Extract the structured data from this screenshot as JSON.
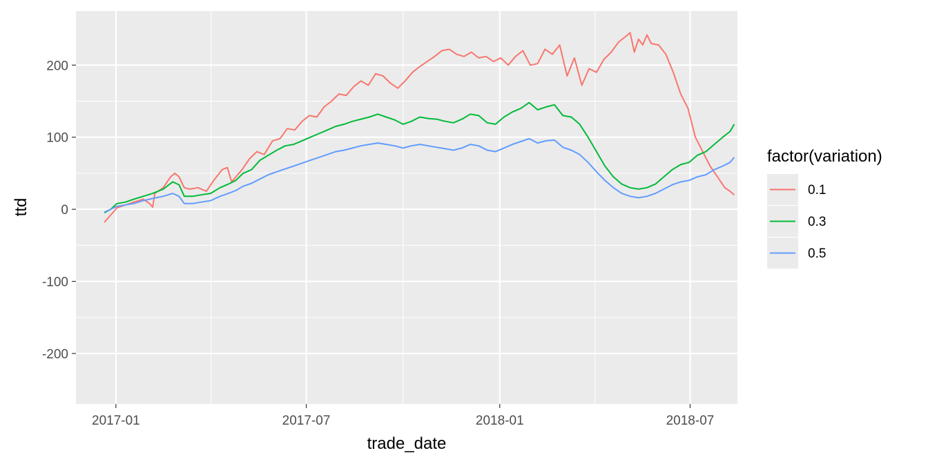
{
  "chart_data": {
    "type": "line",
    "xlabel": "trade_date",
    "ylabel": "ttd",
    "x_ticks": [
      "2017-01",
      "2017-07",
      "2018-01",
      "2018-07"
    ],
    "y_ticks": [
      -200,
      -100,
      0,
      100,
      200
    ],
    "xlim": [
      "2016-11-24",
      "2018-08-15"
    ],
    "ylim": [
      -270,
      275
    ],
    "grid": true,
    "background": "#EBEBEB",
    "legend": {
      "title": "factor(variation)",
      "position": "right",
      "entries": [
        "0.1",
        "0.3",
        "0.5"
      ]
    },
    "series": [
      {
        "name": "0.1",
        "color": "#F8766D",
        "points": [
          [
            "2016-12-21",
            -18
          ],
          [
            "2016-12-27",
            -8
          ],
          [
            "2017-01-02",
            2
          ],
          [
            "2017-01-10",
            6
          ],
          [
            "2017-01-18",
            10
          ],
          [
            "2017-01-27",
            14
          ],
          [
            "2017-02-02",
            8
          ],
          [
            "2017-02-05",
            3
          ],
          [
            "2017-02-07",
            22
          ],
          [
            "2017-02-15",
            30
          ],
          [
            "2017-02-22",
            45
          ],
          [
            "2017-02-26",
            50
          ],
          [
            "2017-03-02",
            45
          ],
          [
            "2017-03-07",
            30
          ],
          [
            "2017-03-12",
            28
          ],
          [
            "2017-03-20",
            30
          ],
          [
            "2017-03-28",
            25
          ],
          [
            "2017-04-04",
            40
          ],
          [
            "2017-04-12",
            55
          ],
          [
            "2017-04-17",
            58
          ],
          [
            "2017-04-21",
            38
          ],
          [
            "2017-05-01",
            55
          ],
          [
            "2017-05-08",
            70
          ],
          [
            "2017-05-15",
            80
          ],
          [
            "2017-05-22",
            76
          ],
          [
            "2017-05-30",
            95
          ],
          [
            "2017-06-06",
            98
          ],
          [
            "2017-06-13",
            112
          ],
          [
            "2017-06-20",
            110
          ],
          [
            "2017-06-27",
            122
          ],
          [
            "2017-07-04",
            130
          ],
          [
            "2017-07-11",
            128
          ],
          [
            "2017-07-18",
            142
          ],
          [
            "2017-07-25",
            150
          ],
          [
            "2017-08-01",
            160
          ],
          [
            "2017-08-08",
            158
          ],
          [
            "2017-08-15",
            170
          ],
          [
            "2017-08-22",
            178
          ],
          [
            "2017-08-29",
            172
          ],
          [
            "2017-09-05",
            188
          ],
          [
            "2017-09-12",
            185
          ],
          [
            "2017-09-19",
            175
          ],
          [
            "2017-09-26",
            168
          ],
          [
            "2017-10-03",
            178
          ],
          [
            "2017-10-10",
            190
          ],
          [
            "2017-10-17",
            198
          ],
          [
            "2017-10-24",
            205
          ],
          [
            "2017-10-31",
            212
          ],
          [
            "2017-11-07",
            220
          ],
          [
            "2017-11-14",
            222
          ],
          [
            "2017-11-21",
            215
          ],
          [
            "2017-11-28",
            212
          ],
          [
            "2017-12-05",
            218
          ],
          [
            "2017-12-12",
            210
          ],
          [
            "2017-12-19",
            212
          ],
          [
            "2017-12-26",
            205
          ],
          [
            "2018-01-02",
            210
          ],
          [
            "2018-01-09",
            200
          ],
          [
            "2018-01-16",
            212
          ],
          [
            "2018-01-23",
            220
          ],
          [
            "2018-01-30",
            200
          ],
          [
            "2018-02-06",
            202
          ],
          [
            "2018-02-13",
            222
          ],
          [
            "2018-02-20",
            215
          ],
          [
            "2018-02-27",
            228
          ],
          [
            "2018-03-06",
            185
          ],
          [
            "2018-03-13",
            210
          ],
          [
            "2018-03-20",
            172
          ],
          [
            "2018-03-27",
            195
          ],
          [
            "2018-04-03",
            190
          ],
          [
            "2018-04-10",
            208
          ],
          [
            "2018-04-17",
            218
          ],
          [
            "2018-04-24",
            232
          ],
          [
            "2018-05-01",
            240
          ],
          [
            "2018-05-05",
            245
          ],
          [
            "2018-05-09",
            218
          ],
          [
            "2018-05-13",
            236
          ],
          [
            "2018-05-17",
            228
          ],
          [
            "2018-05-21",
            242
          ],
          [
            "2018-05-25",
            230
          ],
          [
            "2018-06-01",
            228
          ],
          [
            "2018-06-08",
            215
          ],
          [
            "2018-06-15",
            190
          ],
          [
            "2018-06-22",
            160
          ],
          [
            "2018-06-29",
            140
          ],
          [
            "2018-07-06",
            100
          ],
          [
            "2018-07-13",
            80
          ],
          [
            "2018-07-20",
            60
          ],
          [
            "2018-07-27",
            45
          ],
          [
            "2018-08-03",
            30
          ],
          [
            "2018-08-08",
            25
          ],
          [
            "2018-08-12",
            20
          ]
        ]
      },
      {
        "name": "0.3",
        "color": "#00BA38",
        "points": [
          [
            "2016-12-21",
            -5
          ],
          [
            "2016-12-27",
            0
          ],
          [
            "2017-01-02",
            8
          ],
          [
            "2017-01-10",
            10
          ],
          [
            "2017-01-18",
            14
          ],
          [
            "2017-01-27",
            18
          ],
          [
            "2017-02-05",
            22
          ],
          [
            "2017-02-15",
            28
          ],
          [
            "2017-02-24",
            38
          ],
          [
            "2017-03-02",
            34
          ],
          [
            "2017-03-07",
            18
          ],
          [
            "2017-03-15",
            18
          ],
          [
            "2017-03-23",
            20
          ],
          [
            "2017-04-01",
            22
          ],
          [
            "2017-04-10",
            30
          ],
          [
            "2017-04-18",
            35
          ],
          [
            "2017-04-25",
            40
          ],
          [
            "2017-05-02",
            50
          ],
          [
            "2017-05-10",
            55
          ],
          [
            "2017-05-18",
            68
          ],
          [
            "2017-05-26",
            75
          ],
          [
            "2017-06-03",
            82
          ],
          [
            "2017-06-11",
            88
          ],
          [
            "2017-06-19",
            90
          ],
          [
            "2017-06-27",
            95
          ],
          [
            "2017-07-05",
            100
          ],
          [
            "2017-07-13",
            105
          ],
          [
            "2017-07-21",
            110
          ],
          [
            "2017-07-29",
            115
          ],
          [
            "2017-08-06",
            118
          ],
          [
            "2017-08-14",
            122
          ],
          [
            "2017-08-22",
            125
          ],
          [
            "2017-08-30",
            128
          ],
          [
            "2017-09-07",
            132
          ],
          [
            "2017-09-15",
            128
          ],
          [
            "2017-09-23",
            124
          ],
          [
            "2017-10-01",
            118
          ],
          [
            "2017-10-09",
            122
          ],
          [
            "2017-10-17",
            128
          ],
          [
            "2017-10-25",
            126
          ],
          [
            "2017-11-02",
            125
          ],
          [
            "2017-11-10",
            122
          ],
          [
            "2017-11-18",
            120
          ],
          [
            "2017-11-26",
            125
          ],
          [
            "2017-12-04",
            132
          ],
          [
            "2017-12-12",
            130
          ],
          [
            "2017-12-20",
            120
          ],
          [
            "2017-12-28",
            118
          ],
          [
            "2018-01-05",
            128
          ],
          [
            "2018-01-13",
            135
          ],
          [
            "2018-01-21",
            140
          ],
          [
            "2018-01-29",
            148
          ],
          [
            "2018-02-06",
            138
          ],
          [
            "2018-02-14",
            142
          ],
          [
            "2018-02-22",
            145
          ],
          [
            "2018-03-02",
            130
          ],
          [
            "2018-03-10",
            128
          ],
          [
            "2018-03-18",
            118
          ],
          [
            "2018-03-26",
            100
          ],
          [
            "2018-04-03",
            80
          ],
          [
            "2018-04-11",
            60
          ],
          [
            "2018-04-19",
            45
          ],
          [
            "2018-04-27",
            35
          ],
          [
            "2018-05-05",
            30
          ],
          [
            "2018-05-13",
            28
          ],
          [
            "2018-05-21",
            30
          ],
          [
            "2018-05-29",
            35
          ],
          [
            "2018-06-06",
            45
          ],
          [
            "2018-06-14",
            55
          ],
          [
            "2018-06-22",
            62
          ],
          [
            "2018-06-30",
            65
          ],
          [
            "2018-07-08",
            75
          ],
          [
            "2018-07-16",
            80
          ],
          [
            "2018-07-24",
            90
          ],
          [
            "2018-08-01",
            100
          ],
          [
            "2018-08-08",
            108
          ],
          [
            "2018-08-12",
            118
          ]
        ]
      },
      {
        "name": "0.5",
        "color": "#619CFF",
        "points": [
          [
            "2016-12-21",
            -4
          ],
          [
            "2016-12-27",
            0
          ],
          [
            "2017-01-02",
            4
          ],
          [
            "2017-01-10",
            6
          ],
          [
            "2017-01-18",
            8
          ],
          [
            "2017-01-27",
            12
          ],
          [
            "2017-02-05",
            15
          ],
          [
            "2017-02-15",
            18
          ],
          [
            "2017-02-24",
            22
          ],
          [
            "2017-03-02",
            18
          ],
          [
            "2017-03-07",
            8
          ],
          [
            "2017-03-15",
            8
          ],
          [
            "2017-03-23",
            10
          ],
          [
            "2017-04-01",
            12
          ],
          [
            "2017-04-10",
            18
          ],
          [
            "2017-04-18",
            22
          ],
          [
            "2017-04-25",
            26
          ],
          [
            "2017-05-02",
            32
          ],
          [
            "2017-05-10",
            36
          ],
          [
            "2017-05-18",
            42
          ],
          [
            "2017-05-26",
            48
          ],
          [
            "2017-06-03",
            52
          ],
          [
            "2017-06-11",
            56
          ],
          [
            "2017-06-19",
            60
          ],
          [
            "2017-06-27",
            64
          ],
          [
            "2017-07-05",
            68
          ],
          [
            "2017-07-13",
            72
          ],
          [
            "2017-07-21",
            76
          ],
          [
            "2017-07-29",
            80
          ],
          [
            "2017-08-06",
            82
          ],
          [
            "2017-08-14",
            85
          ],
          [
            "2017-08-22",
            88
          ],
          [
            "2017-08-30",
            90
          ],
          [
            "2017-09-07",
            92
          ],
          [
            "2017-09-15",
            90
          ],
          [
            "2017-09-23",
            88
          ],
          [
            "2017-10-01",
            85
          ],
          [
            "2017-10-09",
            88
          ],
          [
            "2017-10-17",
            90
          ],
          [
            "2017-10-25",
            88
          ],
          [
            "2017-11-02",
            86
          ],
          [
            "2017-11-10",
            84
          ],
          [
            "2017-11-18",
            82
          ],
          [
            "2017-11-26",
            85
          ],
          [
            "2017-12-04",
            90
          ],
          [
            "2017-12-12",
            88
          ],
          [
            "2017-12-20",
            82
          ],
          [
            "2017-12-28",
            80
          ],
          [
            "2018-01-05",
            85
          ],
          [
            "2018-01-13",
            90
          ],
          [
            "2018-01-21",
            94
          ],
          [
            "2018-01-29",
            98
          ],
          [
            "2018-02-06",
            92
          ],
          [
            "2018-02-14",
            95
          ],
          [
            "2018-02-22",
            96
          ],
          [
            "2018-03-02",
            86
          ],
          [
            "2018-03-10",
            82
          ],
          [
            "2018-03-18",
            76
          ],
          [
            "2018-03-26",
            65
          ],
          [
            "2018-04-03",
            52
          ],
          [
            "2018-04-11",
            40
          ],
          [
            "2018-04-19",
            30
          ],
          [
            "2018-04-27",
            22
          ],
          [
            "2018-05-05",
            18
          ],
          [
            "2018-05-13",
            16
          ],
          [
            "2018-05-21",
            18
          ],
          [
            "2018-05-29",
            22
          ],
          [
            "2018-06-06",
            28
          ],
          [
            "2018-06-14",
            34
          ],
          [
            "2018-06-22",
            38
          ],
          [
            "2018-06-30",
            40
          ],
          [
            "2018-07-08",
            45
          ],
          [
            "2018-07-16",
            48
          ],
          [
            "2018-07-24",
            55
          ],
          [
            "2018-08-01",
            60
          ],
          [
            "2018-08-08",
            65
          ],
          [
            "2018-08-12",
            72
          ]
        ]
      }
    ]
  }
}
